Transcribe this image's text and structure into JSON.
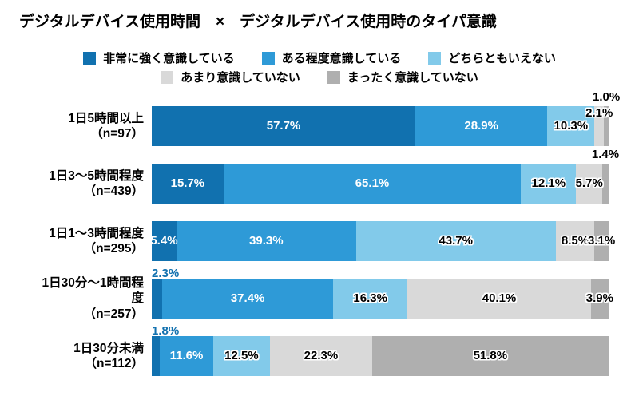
{
  "title": "デジタルデバイス使用時間　×　デジタルデバイス使用時のタイパ意識",
  "legend": {
    "rows": [
      [
        {
          "label": "非常に強く意識している",
          "color": "#1171AF"
        },
        {
          "label": "ある程度意識している",
          "color": "#2E9AD7"
        },
        {
          "label": "どちらともいえない",
          "color": "#82CAEA"
        }
      ],
      [
        {
          "label": "あまり意識していない",
          "color": "#D9D9D9"
        },
        {
          "label": "まったく意識していない",
          "color": "#AFAFAF"
        }
      ]
    ]
  },
  "chart_data": {
    "type": "bar",
    "subtype": "horizontal-stacked-100",
    "unit": "%",
    "xlim": [
      0,
      100
    ],
    "grid": false,
    "legend_position": "top",
    "title": "デジタルデバイス使用時間　×　デジタルデバイス使用時のタイパ意識",
    "series": [
      "非常に強く意識している",
      "ある程度意識している",
      "どちらともいえない",
      "あまり意識していない",
      "まったく意識していない"
    ],
    "series_colors": [
      "#1171AF",
      "#2E9AD7",
      "#82CAEA",
      "#D9D9D9",
      "#AFAFAF"
    ],
    "categories": [
      {
        "label": "1日5時間以上",
        "n": "（n=97）",
        "values": [
          57.7,
          28.9,
          10.3,
          2.1,
          1.0
        ]
      },
      {
        "label": "1日3〜5時間程度",
        "n": "（n=439）",
        "values": [
          15.7,
          65.1,
          12.1,
          5.7,
          1.4
        ]
      },
      {
        "label": "1日1〜3時間程度",
        "n": "（n=295）",
        "values": [
          5.4,
          39.3,
          43.7,
          8.5,
          3.1
        ]
      },
      {
        "label": "1日30分〜1時間程\n度",
        "n": "（n=257）",
        "values": [
          2.3,
          37.4,
          16.3,
          40.1,
          3.9
        ]
      },
      {
        "label": "1日30分未満",
        "n": "（n=112）",
        "values": [
          1.8,
          11.6,
          12.5,
          22.3,
          51.8
        ]
      }
    ],
    "value_label_format": "{value}%"
  },
  "label_layout": {
    "default_colors": [
      "white",
      "white",
      "black",
      "black",
      "black"
    ],
    "overrides": {
      "0": {
        "3": {
          "dy": 0
        },
        "4": {
          "dy": -20
        }
      },
      "1": {
        "4": {
          "dy": -20
        }
      },
      "3": {
        "0": {
          "dy": -15,
          "align": "start",
          "color": "blue"
        }
      },
      "4": {
        "0": {
          "dy": -15,
          "align": "start",
          "color": "blue"
        }
      }
    }
  }
}
